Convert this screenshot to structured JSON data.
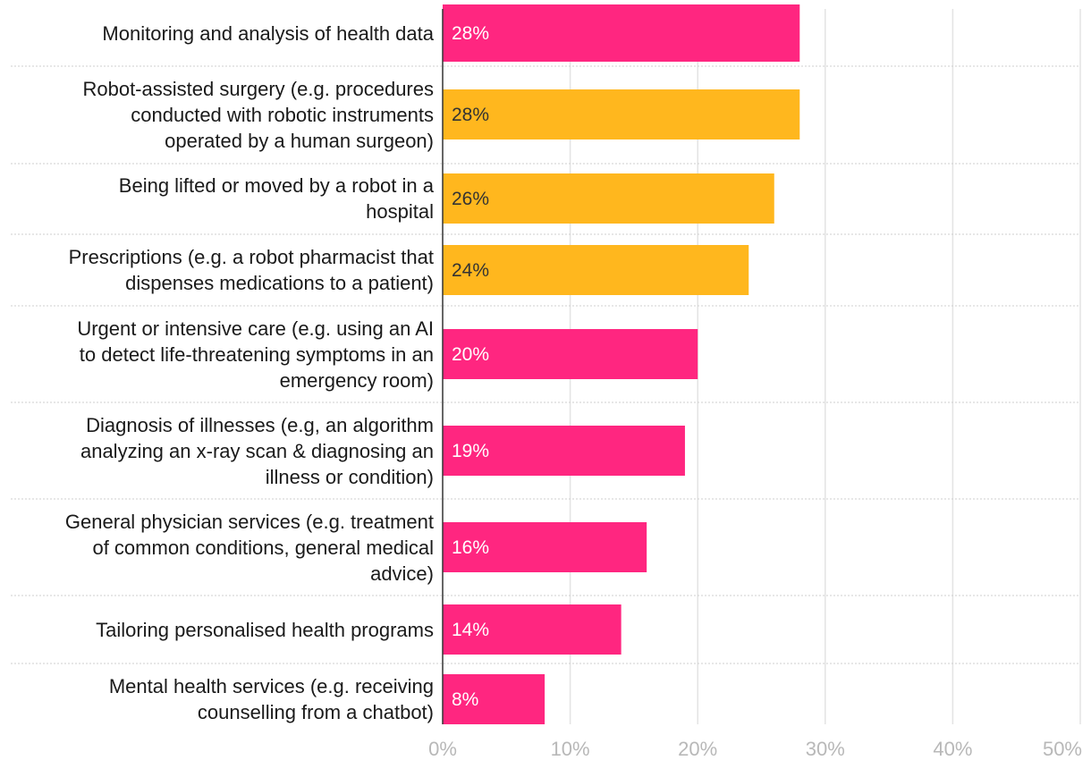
{
  "chart_data": {
    "type": "bar",
    "orientation": "horizontal",
    "categories": [
      "Monitoring and analysis of health data",
      "Robot-assisted surgery (e.g. procedures conducted with robotic instruments operated by a human surgeon)",
      "Being lifted or moved by a robot in a hospital",
      "Prescriptions (e.g. a robot pharmacist that dispenses medications to a patient)",
      "Urgent or intensive care (e.g. using an AI to detect life-threatening symptoms in an emergency room)",
      "Diagnosis of illnesses (e.g, an algorithm analyzing an x-ray scan & diagnosing an illness or condition)",
      "General physician services (e.g. treatment of common conditions, general medical advice)",
      "Tailoring personalised health programs",
      "Mental health services (e.g. receiving counselling from a chatbot)"
    ],
    "label_lines": [
      [
        "Monitoring and analysis of health data"
      ],
      [
        "Robot-assisted surgery (e.g. procedures",
        "conducted with robotic instruments",
        "operated by a human surgeon)"
      ],
      [
        "Being lifted or moved by a robot in a",
        "hospital"
      ],
      [
        "Prescriptions (e.g. a robot pharmacist that",
        "dispenses medications to a patient)"
      ],
      [
        "Urgent or intensive care (e.g. using an AI",
        "to detect life-threatening symptoms in an",
        "emergency room)"
      ],
      [
        "Diagnosis of illnesses (e.g, an algorithm",
        "analyzing an x-ray scan & diagnosing an",
        "illness or condition)"
      ],
      [
        "General physician services (e.g. treatment",
        "of common conditions, general medical",
        "advice)"
      ],
      [
        "Tailoring personalised health programs"
      ],
      [
        "Mental health services (e.g. receiving",
        "counselling from a chatbot)"
      ]
    ],
    "values": [
      28,
      28,
      26,
      24,
      20,
      19,
      16,
      14,
      8
    ],
    "data_labels": [
      "28%",
      "28%",
      "26%",
      "24%",
      "20%",
      "19%",
      "16%",
      "14%",
      "8%"
    ],
    "bar_colors": [
      "#ff2680",
      "#ffb71e",
      "#ffb71e",
      "#ffb71e",
      "#ff2680",
      "#ff2680",
      "#ff2680",
      "#ff2680",
      "#ff2680"
    ],
    "label_colors": [
      "#ffffff",
      "#333333",
      "#333333",
      "#333333",
      "#ffffff",
      "#ffffff",
      "#ffffff",
      "#ffffff",
      "#ffffff"
    ],
    "xlim": [
      0,
      50
    ],
    "xticks": [
      0,
      10,
      20,
      30,
      40,
      50
    ],
    "xtick_labels": [
      "0%",
      "10%",
      "20%",
      "30%",
      "40%",
      "50%"
    ],
    "grid": true,
    "title": "",
    "xlabel": "",
    "ylabel": ""
  },
  "colors": {
    "primary": "#ff2680",
    "highlight": "#ffb71e",
    "gridline": "#e3e3e3",
    "separator": "#cfcfcf",
    "axis": "#333333",
    "tick_text": "#b8b8b8"
  }
}
